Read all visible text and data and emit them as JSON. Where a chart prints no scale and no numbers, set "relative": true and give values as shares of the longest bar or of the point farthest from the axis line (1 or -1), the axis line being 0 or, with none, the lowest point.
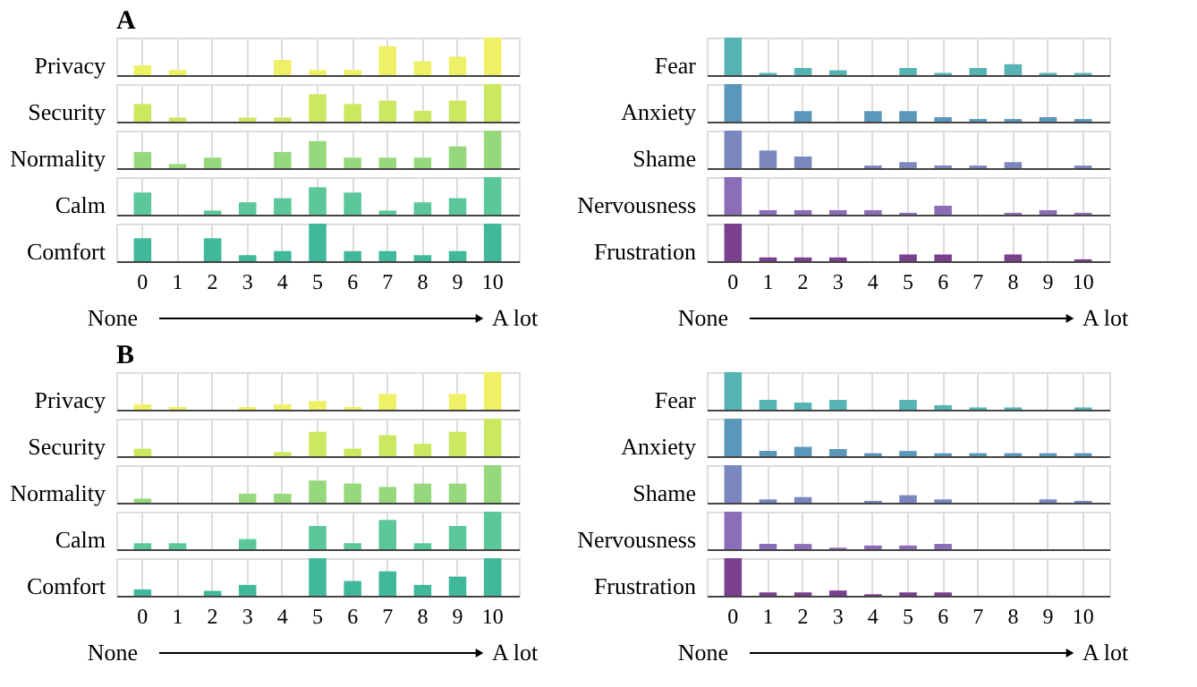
{
  "chart_data": [
    {
      "type": "bar",
      "title": "A",
      "ylabel": "Privacy",
      "relative": true,
      "grid": "x",
      "tick_labels": false,
      "color": "#eef066",
      "categories": [
        "0",
        "1",
        "2",
        "3",
        "4",
        "5",
        "6",
        "7",
        "8",
        "9",
        "10"
      ],
      "values": [
        0.26,
        0.14,
        0,
        0,
        0.4,
        0.14,
        0.14,
        0.77,
        0.37,
        0.49,
        1
      ]
    },
    {
      "type": "bar",
      "ylabel": "Security",
      "relative": true,
      "grid": "x",
      "tick_labels": false,
      "color": "#cbe860",
      "categories": [
        "0",
        "1",
        "2",
        "3",
        "4",
        "5",
        "6",
        "7",
        "8",
        "9",
        "10"
      ],
      "values": [
        0.47,
        0.11,
        0,
        0.11,
        0.11,
        0.73,
        0.47,
        0.56,
        0.29,
        0.56,
        1
      ]
    },
    {
      "type": "bar",
      "ylabel": "Normality",
      "relative": true,
      "grid": "x",
      "tick_labels": false,
      "color": "#96d97c",
      "categories": [
        "0",
        "1",
        "2",
        "3",
        "4",
        "5",
        "6",
        "7",
        "8",
        "9",
        "10"
      ],
      "values": [
        0.43,
        0.11,
        0.28,
        0,
        0.43,
        0.72,
        0.28,
        0.28,
        0.28,
        0.58,
        1
      ]
    },
    {
      "type": "bar",
      "ylabel": "Calm",
      "relative": true,
      "grid": "x",
      "tick_labels": false,
      "color": "#5cc79a",
      "categories": [
        "0",
        "1",
        "2",
        "3",
        "4",
        "5",
        "6",
        "7",
        "8",
        "9",
        "10"
      ],
      "values": [
        0.59,
        0,
        0.11,
        0.33,
        0.44,
        0.73,
        0.59,
        0.11,
        0.33,
        0.44,
        1
      ]
    },
    {
      "type": "bar",
      "ylabel": "Comfort",
      "relative": true,
      "grid": "x",
      "tick_labels": "x",
      "annotations": [
        "None",
        "A lot"
      ],
      "color": "#40b89a",
      "categories": [
        "0",
        "1",
        "2",
        "3",
        "4",
        "5",
        "6",
        "7",
        "8",
        "9",
        "10"
      ],
      "values": [
        0.61,
        0,
        0.61,
        0.16,
        0.27,
        1,
        0.27,
        0.27,
        0.16,
        0.27,
        1
      ]
    },
    {
      "type": "bar",
      "ylabel": "Fear",
      "relative": true,
      "grid": "x",
      "tick_labels": false,
      "color": "#56b4b4",
      "categories": [
        "0",
        "1",
        "2",
        "3",
        "4",
        "5",
        "6",
        "7",
        "8",
        "9",
        "10"
      ],
      "values": [
        1,
        0.06,
        0.19,
        0.13,
        0,
        0.19,
        0.06,
        0.19,
        0.29,
        0.06,
        0.06
      ]
    },
    {
      "type": "bar",
      "ylabel": "Anxiety",
      "relative": true,
      "grid": "x",
      "tick_labels": false,
      "color": "#5b96bb",
      "categories": [
        "0",
        "1",
        "2",
        "3",
        "4",
        "5",
        "6",
        "7",
        "8",
        "9",
        "10"
      ],
      "values": [
        1,
        0,
        0.28,
        0,
        0.28,
        0.28,
        0.12,
        0.07,
        0.07,
        0.12,
        0.07
      ]
    },
    {
      "type": "bar",
      "ylabel": "Shame",
      "relative": true,
      "grid": "x",
      "tick_labels": false,
      "color": "#7b87bf",
      "categories": [
        "0",
        "1",
        "2",
        "3",
        "4",
        "5",
        "6",
        "7",
        "8",
        "9",
        "10"
      ],
      "values": [
        1,
        0.47,
        0.31,
        0,
        0.07,
        0.16,
        0.07,
        0.07,
        0.16,
        0,
        0.07
      ]
    },
    {
      "type": "bar",
      "ylabel": "Nervousness",
      "relative": true,
      "grid": "x",
      "tick_labels": false,
      "color": "#8c6eb8",
      "categories": [
        "0",
        "1",
        "2",
        "3",
        "4",
        "5",
        "6",
        "7",
        "8",
        "9",
        "10"
      ],
      "values": [
        1,
        0.12,
        0.12,
        0.12,
        0.12,
        0.05,
        0.24,
        0,
        0.05,
        0.12,
        0.05
      ]
    },
    {
      "type": "bar",
      "ylabel": "Frustration",
      "relative": true,
      "grid": "x",
      "tick_labels": "x",
      "annotations": [
        "None",
        "A lot"
      ],
      "color": "#7a3f8f",
      "categories": [
        "0",
        "1",
        "2",
        "3",
        "4",
        "5",
        "6",
        "7",
        "8",
        "9",
        "10"
      ],
      "values": [
        1,
        0.1,
        0.1,
        0.1,
        0,
        0.18,
        0.18,
        0,
        0.18,
        0,
        0.05
      ]
    },
    {
      "type": "bar",
      "title": "B",
      "ylabel": "Privacy",
      "relative": true,
      "grid": "x",
      "tick_labels": false,
      "color": "#eef066",
      "categories": [
        "0",
        "1",
        "2",
        "3",
        "4",
        "5",
        "6",
        "7",
        "8",
        "9",
        "10"
      ],
      "values": [
        0.14,
        0.07,
        0,
        0.07,
        0.14,
        0.23,
        0.07,
        0.42,
        0,
        0.42,
        1
      ]
    },
    {
      "type": "bar",
      "ylabel": "Security",
      "relative": true,
      "grid": "x",
      "tick_labels": false,
      "color": "#cbe860",
      "categories": [
        "0",
        "1",
        "2",
        "3",
        "4",
        "5",
        "6",
        "7",
        "8",
        "9",
        "10"
      ],
      "values": [
        0.2,
        0,
        0,
        0,
        0.11,
        0.65,
        0.2,
        0.56,
        0.33,
        0.65,
        1
      ]
    },
    {
      "type": "bar",
      "ylabel": "Normality",
      "relative": true,
      "grid": "x",
      "tick_labels": false,
      "color": "#96d97c",
      "categories": [
        "0",
        "1",
        "2",
        "3",
        "4",
        "5",
        "6",
        "7",
        "8",
        "9",
        "10"
      ],
      "values": [
        0.11,
        0,
        0,
        0.24,
        0.24,
        0.59,
        0.51,
        0.42,
        0.51,
        0.51,
        1
      ]
    },
    {
      "type": "bar",
      "ylabel": "Calm",
      "relative": true,
      "grid": "x",
      "tick_labels": false,
      "color": "#5cc79a",
      "categories": [
        "0",
        "1",
        "2",
        "3",
        "4",
        "5",
        "6",
        "7",
        "8",
        "9",
        "10"
      ],
      "values": [
        0.16,
        0.16,
        0,
        0.27,
        0,
        0.62,
        0.16,
        0.78,
        0.16,
        0.62,
        1
      ]
    },
    {
      "type": "bar",
      "ylabel": "Comfort",
      "relative": true,
      "grid": "x",
      "tick_labels": "x",
      "annotations": [
        "None",
        "A lot"
      ],
      "color": "#40b89a",
      "categories": [
        "0",
        "1",
        "2",
        "3",
        "4",
        "5",
        "6",
        "7",
        "8",
        "9",
        "10"
      ],
      "values": [
        0.17,
        0,
        0.13,
        0.29,
        0,
        1,
        0.39,
        0.65,
        0.29,
        0.51,
        1
      ]
    },
    {
      "type": "bar",
      "ylabel": "Fear",
      "relative": true,
      "grid": "x",
      "tick_labels": false,
      "color": "#56b4b4",
      "categories": [
        "0",
        "1",
        "2",
        "3",
        "4",
        "5",
        "6",
        "7",
        "8",
        "9",
        "10"
      ],
      "values": [
        1,
        0.26,
        0.19,
        0.26,
        0,
        0.26,
        0.12,
        0.06,
        0.06,
        0,
        0.06
      ]
    },
    {
      "type": "bar",
      "ylabel": "Anxiety",
      "relative": true,
      "grid": "x",
      "tick_labels": false,
      "color": "#5b96bb",
      "categories": [
        "0",
        "1",
        "2",
        "3",
        "4",
        "5",
        "6",
        "7",
        "8",
        "9",
        "10"
      ],
      "values": [
        1,
        0.14,
        0.25,
        0.19,
        0.08,
        0.14,
        0.08,
        0.08,
        0.08,
        0.08,
        0.08
      ]
    },
    {
      "type": "bar",
      "ylabel": "Shame",
      "relative": true,
      "grid": "x",
      "tick_labels": false,
      "color": "#7b87bf",
      "categories": [
        "0",
        "1",
        "2",
        "3",
        "4",
        "5",
        "6",
        "7",
        "8",
        "9",
        "10"
      ],
      "values": [
        1,
        0.09,
        0.15,
        0,
        0.05,
        0.2,
        0.09,
        0,
        0,
        0.09,
        0.05
      ]
    },
    {
      "type": "bar",
      "ylabel": "Nervousness",
      "relative": true,
      "grid": "x",
      "tick_labels": false,
      "color": "#8c6eb8",
      "categories": [
        "0",
        "1",
        "2",
        "3",
        "4",
        "5",
        "6",
        "7",
        "8",
        "9",
        "10"
      ],
      "values": [
        1,
        0.14,
        0.14,
        0.04,
        0.1,
        0.1,
        0.14,
        0,
        0,
        0,
        0
      ]
    },
    {
      "type": "bar",
      "ylabel": "Frustration",
      "relative": true,
      "grid": "x",
      "tick_labels": "x",
      "annotations": [
        "None",
        "A lot"
      ],
      "color": "#7a3f8f",
      "categories": [
        "0",
        "1",
        "2",
        "3",
        "4",
        "5",
        "6",
        "7",
        "8",
        "9",
        "10"
      ],
      "values": [
        1,
        0.09,
        0.09,
        0.14,
        0.04,
        0.09,
        0.09,
        0,
        0,
        0,
        0
      ]
    }
  ]
}
